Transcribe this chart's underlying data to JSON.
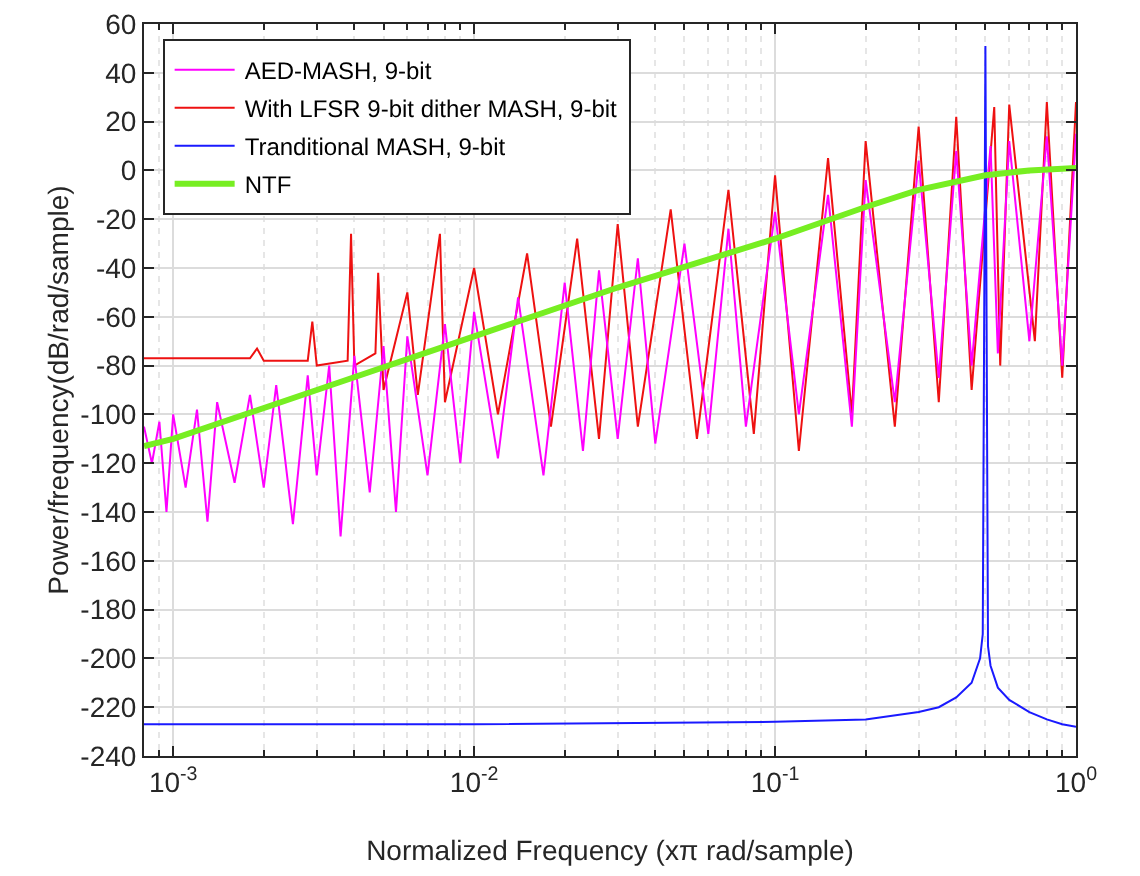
{
  "chart_data": {
    "type": "line",
    "xlabel": "Normalized Frequency (xπ rad/sample)",
    "ylabel": "Power/frequency(dB/rad/sample)",
    "log": "x",
    "grid": true,
    "legend": "top left",
    "xlim": [
      0.0008,
      1
    ],
    "xticks": [
      {
        "value": 0.001,
        "label": "10$^{-3}$"
      },
      {
        "value": 0.01,
        "label": "10$^{-2}$"
      },
      {
        "value": 0.1,
        "label": "10$^{-1}$"
      },
      {
        "value": 1,
        "label": "10$^{0}$"
      }
    ],
    "ylim": [
      -240,
      60
    ],
    "yticks": [
      -240,
      -220,
      -200,
      -180,
      -160,
      -140,
      -120,
      -100,
      -80,
      -60,
      -40,
      -20,
      0,
      20,
      40,
      60
    ],
    "series": [
      {
        "name": "AED-MASH, 9-bit",
        "color": "#ff00ff",
        "x": [
          0.0008,
          0.00085,
          0.0009,
          0.00095,
          0.001,
          0.0011,
          0.0012,
          0.0013,
          0.0014,
          0.0016,
          0.0018,
          0.002,
          0.0022,
          0.0025,
          0.0028,
          0.003,
          0.0033,
          0.0036,
          0.004,
          0.0045,
          0.005,
          0.0055,
          0.006,
          0.007,
          0.008,
          0.009,
          0.01,
          0.012,
          0.014,
          0.017,
          0.02,
          0.023,
          0.026,
          0.03,
          0.035,
          0.04,
          0.05,
          0.06,
          0.07,
          0.08,
          0.1,
          0.12,
          0.15,
          0.18,
          0.2,
          0.25,
          0.3,
          0.35,
          0.4,
          0.45,
          0.52,
          0.55,
          0.6,
          0.7,
          0.8,
          0.9,
          1
        ],
        "values": [
          -105,
          -120,
          -103,
          -140,
          -100,
          -130,
          -98,
          -144,
          -95,
          -128,
          -92,
          -130,
          -88,
          -145,
          -84,
          -125,
          -80,
          -150,
          -76,
          -132,
          -72,
          -140,
          -68,
          -125,
          -63,
          -120,
          -58,
          -118,
          -52,
          -125,
          -46,
          -115,
          -41,
          -110,
          -36,
          -112,
          -30,
          -108,
          -24,
          -105,
          -17,
          -100,
          -10,
          -105,
          -4,
          -95,
          4,
          -85,
          8,
          -80,
          10,
          -75,
          12,
          -70,
          14,
          -80,
          15
        ]
      },
      {
        "name": "With LFSR 9-bit dither MASH, 9-bit",
        "color": "#ee1111",
        "x": [
          0.0008,
          0.0018,
          0.0019,
          0.002,
          0.0028,
          0.0029,
          0.003,
          0.0038,
          0.0039,
          0.004,
          0.0047,
          0.0048,
          0.005,
          0.006,
          0.0065,
          0.0077,
          0.008,
          0.01,
          0.012,
          0.015,
          0.018,
          0.022,
          0.026,
          0.03,
          0.035,
          0.045,
          0.055,
          0.07,
          0.085,
          0.1,
          0.12,
          0.15,
          0.18,
          0.2,
          0.25,
          0.3,
          0.35,
          0.4,
          0.45,
          0.535,
          0.56,
          0.6,
          0.73,
          0.8,
          0.9,
          1
        ],
        "values": [
          -77,
          -77,
          -73,
          -78,
          -78,
          -62,
          -80,
          -78,
          -26,
          -80,
          -75,
          -42,
          -90,
          -50,
          -92,
          -26,
          -95,
          -40,
          -100,
          -34,
          -105,
          -28,
          -110,
          -22,
          -105,
          -16,
          -110,
          -8,
          -108,
          -2,
          -115,
          5,
          -100,
          12,
          -105,
          18,
          -95,
          22,
          -90,
          26,
          -80,
          27,
          -70,
          28,
          -85,
          28
        ]
      },
      {
        "name": "Tranditional MASH, 9-bit",
        "color": "#1a1aff",
        "x": [
          0.0008,
          0.01,
          0.1,
          0.2,
          0.3,
          0.35,
          0.4,
          0.45,
          0.48,
          0.49,
          0.5,
          0.51,
          0.52,
          0.55,
          0.6,
          0.7,
          0.8,
          0.9,
          1
        ],
        "values": [
          -227,
          -227,
          -226,
          -225,
          -222,
          -220,
          -216,
          -210,
          -200,
          -190,
          51,
          -195,
          -203,
          -212,
          -217,
          -222,
          -225,
          -227,
          -228
        ]
      },
      {
        "name": "NTF",
        "color": "#77ee22",
        "x": [
          0.0008,
          0.001,
          0.003,
          0.01,
          0.03,
          0.1,
          0.2,
          0.3,
          0.5,
          0.7,
          1
        ],
        "values": [
          -113,
          -110,
          -90,
          -68,
          -48,
          -28,
          -15,
          -8,
          -2,
          0,
          1
        ]
      }
    ]
  }
}
